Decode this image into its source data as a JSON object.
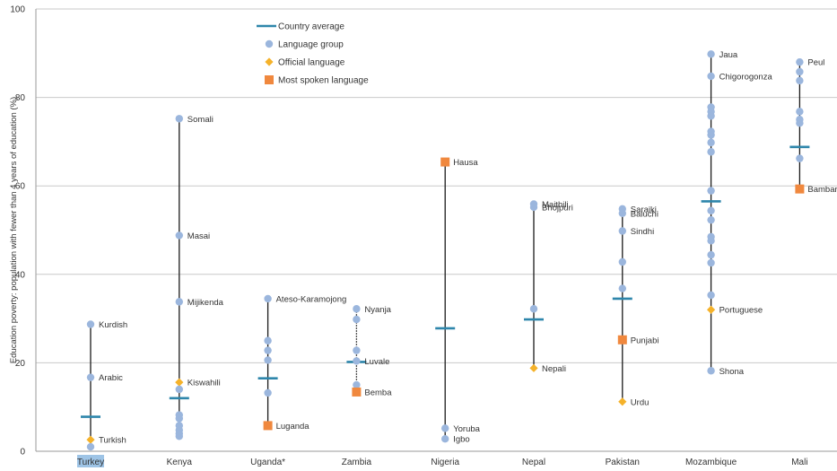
{
  "chart_data": {
    "type": "scatter",
    "ylabel": "Education poverty: population with fewer than 4 years of education (%)",
    "ylim": [
      0,
      100
    ],
    "yticks": [
      0,
      20,
      40,
      60,
      80,
      100
    ],
    "grid": true,
    "legend_position": "top-left",
    "legend": [
      {
        "key": "average",
        "label": "Country average"
      },
      {
        "key": "language",
        "label": "Language group"
      },
      {
        "key": "official",
        "label": "Official language"
      },
      {
        "key": "spoken",
        "label": "Most spoken language"
      }
    ],
    "colors": {
      "average": "#2e86ab",
      "language": "#9bb6dd",
      "official": "#f5b22a",
      "spoken": "#f0883e",
      "highlight": "#9ec4e6"
    },
    "countries": [
      {
        "name": "Turkey",
        "highlight": true,
        "dotted": false,
        "average": 7.8,
        "points": [
          {
            "kind": "language",
            "value": 28.7,
            "label": "Kurdish"
          },
          {
            "kind": "language",
            "value": 16.7,
            "label": "Arabic"
          },
          {
            "kind": "official",
            "value": 2.6,
            "label": "Turkish"
          },
          {
            "kind": "language",
            "value": 1.0,
            "label": ""
          }
        ]
      },
      {
        "name": "Kenya",
        "highlight": false,
        "dotted": false,
        "average": 12.0,
        "points": [
          {
            "kind": "language",
            "value": 75.2,
            "label": "Somali"
          },
          {
            "kind": "language",
            "value": 48.8,
            "label": "Masai"
          },
          {
            "kind": "language",
            "value": 33.8,
            "label": "Mijikenda"
          },
          {
            "kind": "official",
            "value": 15.6,
            "label": "Kiswahili"
          },
          {
            "kind": "language",
            "value": 14.0,
            "label": ""
          },
          {
            "kind": "language",
            "value": 8.2,
            "label": ""
          },
          {
            "kind": "language",
            "value": 7.4,
            "label": ""
          },
          {
            "kind": "language",
            "value": 5.8,
            "label": ""
          },
          {
            "kind": "language",
            "value": 4.8,
            "label": ""
          },
          {
            "kind": "language",
            "value": 4.0,
            "label": ""
          },
          {
            "kind": "language",
            "value": 3.4,
            "label": ""
          }
        ]
      },
      {
        "name": "Uganda*",
        "highlight": false,
        "dotted": false,
        "average": 16.5,
        "points": [
          {
            "kind": "language",
            "value": 34.5,
            "label": "Ateso-Karamojong"
          },
          {
            "kind": "language",
            "value": 25.0,
            "label": ""
          },
          {
            "kind": "language",
            "value": 22.8,
            "label": ""
          },
          {
            "kind": "language",
            "value": 20.6,
            "label": ""
          },
          {
            "kind": "language",
            "value": 13.2,
            "label": ""
          },
          {
            "kind": "spoken",
            "value": 5.8,
            "label": "Luganda"
          }
        ]
      },
      {
        "name": "Zambia",
        "highlight": false,
        "dotted": true,
        "average": 20.2,
        "points": [
          {
            "kind": "language",
            "value": 32.2,
            "label": "Nyanja"
          },
          {
            "kind": "language",
            "value": 29.8,
            "label": ""
          },
          {
            "kind": "language",
            "value": 22.8,
            "label": ""
          },
          {
            "kind": "language",
            "value": 20.4,
            "label": "Luvale"
          },
          {
            "kind": "language",
            "value": 15.0,
            "label": ""
          },
          {
            "kind": "spoken",
            "value": 13.4,
            "label": "Bemba"
          }
        ]
      },
      {
        "name": "Nigeria",
        "highlight": false,
        "dotted": false,
        "average": 27.8,
        "points": [
          {
            "kind": "spoken",
            "value": 65.4,
            "label": "Hausa"
          },
          {
            "kind": "language",
            "value": 5.2,
            "label": "Yoruba"
          },
          {
            "kind": "language",
            "value": 2.8,
            "label": "Igbo"
          }
        ]
      },
      {
        "name": "Nepal",
        "highlight": false,
        "dotted": false,
        "average": 29.8,
        "points": [
          {
            "kind": "language",
            "value": 55.9,
            "label": "Maithili"
          },
          {
            "kind": "language",
            "value": 55.2,
            "label": "Bhojpuri"
          },
          {
            "kind": "language",
            "value": 32.2,
            "label": ""
          },
          {
            "kind": "official",
            "value": 18.8,
            "label": "Nepali"
          }
        ]
      },
      {
        "name": "Pakistan",
        "highlight": false,
        "dotted": false,
        "average": 34.5,
        "points": [
          {
            "kind": "language",
            "value": 54.8,
            "label": "Saraiki"
          },
          {
            "kind": "language",
            "value": 53.8,
            "label": "Baluchi"
          },
          {
            "kind": "language",
            "value": 49.8,
            "label": "Sindhi"
          },
          {
            "kind": "language",
            "value": 42.8,
            "label": ""
          },
          {
            "kind": "language",
            "value": 36.8,
            "label": ""
          },
          {
            "kind": "spoken",
            "value": 25.2,
            "label": "Punjabi"
          },
          {
            "kind": "official",
            "value": 11.2,
            "label": "Urdu"
          }
        ]
      },
      {
        "name": "Mozambique",
        "highlight": false,
        "dotted": false,
        "average": 56.5,
        "points": [
          {
            "kind": "language",
            "value": 89.8,
            "label": "Jaua"
          },
          {
            "kind": "language",
            "value": 84.8,
            "label": "Chigorogonza"
          },
          {
            "kind": "language",
            "value": 77.8,
            "label": ""
          },
          {
            "kind": "language",
            "value": 76.8,
            "label": ""
          },
          {
            "kind": "language",
            "value": 75.8,
            "label": ""
          },
          {
            "kind": "language",
            "value": 72.3,
            "label": ""
          },
          {
            "kind": "language",
            "value": 71.5,
            "label": ""
          },
          {
            "kind": "language",
            "value": 69.8,
            "label": ""
          },
          {
            "kind": "language",
            "value": 67.7,
            "label": ""
          },
          {
            "kind": "language",
            "value": 58.9,
            "label": ""
          },
          {
            "kind": "language",
            "value": 54.4,
            "label": ""
          },
          {
            "kind": "language",
            "value": 52.3,
            "label": ""
          },
          {
            "kind": "language",
            "value": 48.5,
            "label": ""
          },
          {
            "kind": "language",
            "value": 47.6,
            "label": ""
          },
          {
            "kind": "language",
            "value": 44.4,
            "label": ""
          },
          {
            "kind": "language",
            "value": 42.6,
            "label": ""
          },
          {
            "kind": "language",
            "value": 35.3,
            "label": ""
          },
          {
            "kind": "official",
            "value": 32.0,
            "label": "Portuguese"
          },
          {
            "kind": "language",
            "value": 18.2,
            "label": "Shona"
          }
        ]
      },
      {
        "name": "Mali",
        "highlight": false,
        "dotted": false,
        "average": 68.8,
        "points": [
          {
            "kind": "language",
            "value": 88.0,
            "label": "Peul"
          },
          {
            "kind": "language",
            "value": 85.8,
            "label": ""
          },
          {
            "kind": "language",
            "value": 83.8,
            "label": ""
          },
          {
            "kind": "language",
            "value": 76.8,
            "label": ""
          },
          {
            "kind": "language",
            "value": 75.0,
            "label": ""
          },
          {
            "kind": "language",
            "value": 74.2,
            "label": ""
          },
          {
            "kind": "language",
            "value": 66.2,
            "label": ""
          },
          {
            "kind": "spoken",
            "value": 59.3,
            "label": "Bambara"
          }
        ]
      }
    ]
  }
}
